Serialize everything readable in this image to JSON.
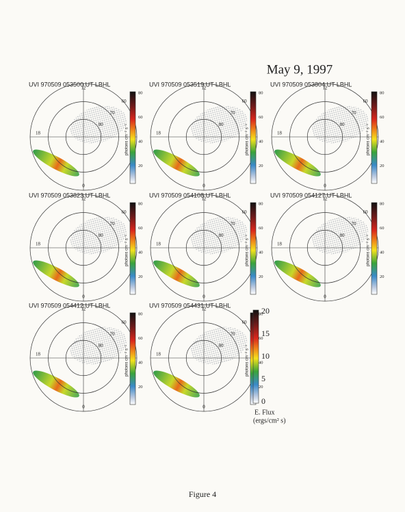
{
  "header": {
    "title": "May 9, 1997"
  },
  "panels": [
    {
      "title": "UVI 970509 053500 UT   LBHL"
    },
    {
      "title": "UVI 970509 053519 UT   LBHL"
    },
    {
      "title": "UVI 970509 053804 UT   LBHL"
    },
    {
      "title": "UVI 970509 053823 UT   LBHL"
    },
    {
      "title": "UVI 970509 054108 UT   LBHL"
    },
    {
      "title": "UVI 970509 054127 UT   LBHL"
    },
    {
      "title": "UVI 970509 054412 UT   LBHL"
    },
    {
      "title": "UVI 970509 054431 UT   LBHL"
    }
  ],
  "polar_labels": {
    "top": "12",
    "left": "18",
    "right": "6",
    "bottom": "0",
    "lat": [
      "60",
      "70",
      "80"
    ]
  },
  "colorbar": {
    "label": "photons cm⁻² s⁻¹",
    "ticks": [
      "80",
      "60",
      "40",
      "20"
    ]
  },
  "energy_bar": {
    "ticks": [
      "20",
      "15",
      "10",
      "5",
      "0"
    ],
    "label": "E. Flux",
    "units": "(ergs/cm² s)"
  },
  "caption": "Figure 4"
}
